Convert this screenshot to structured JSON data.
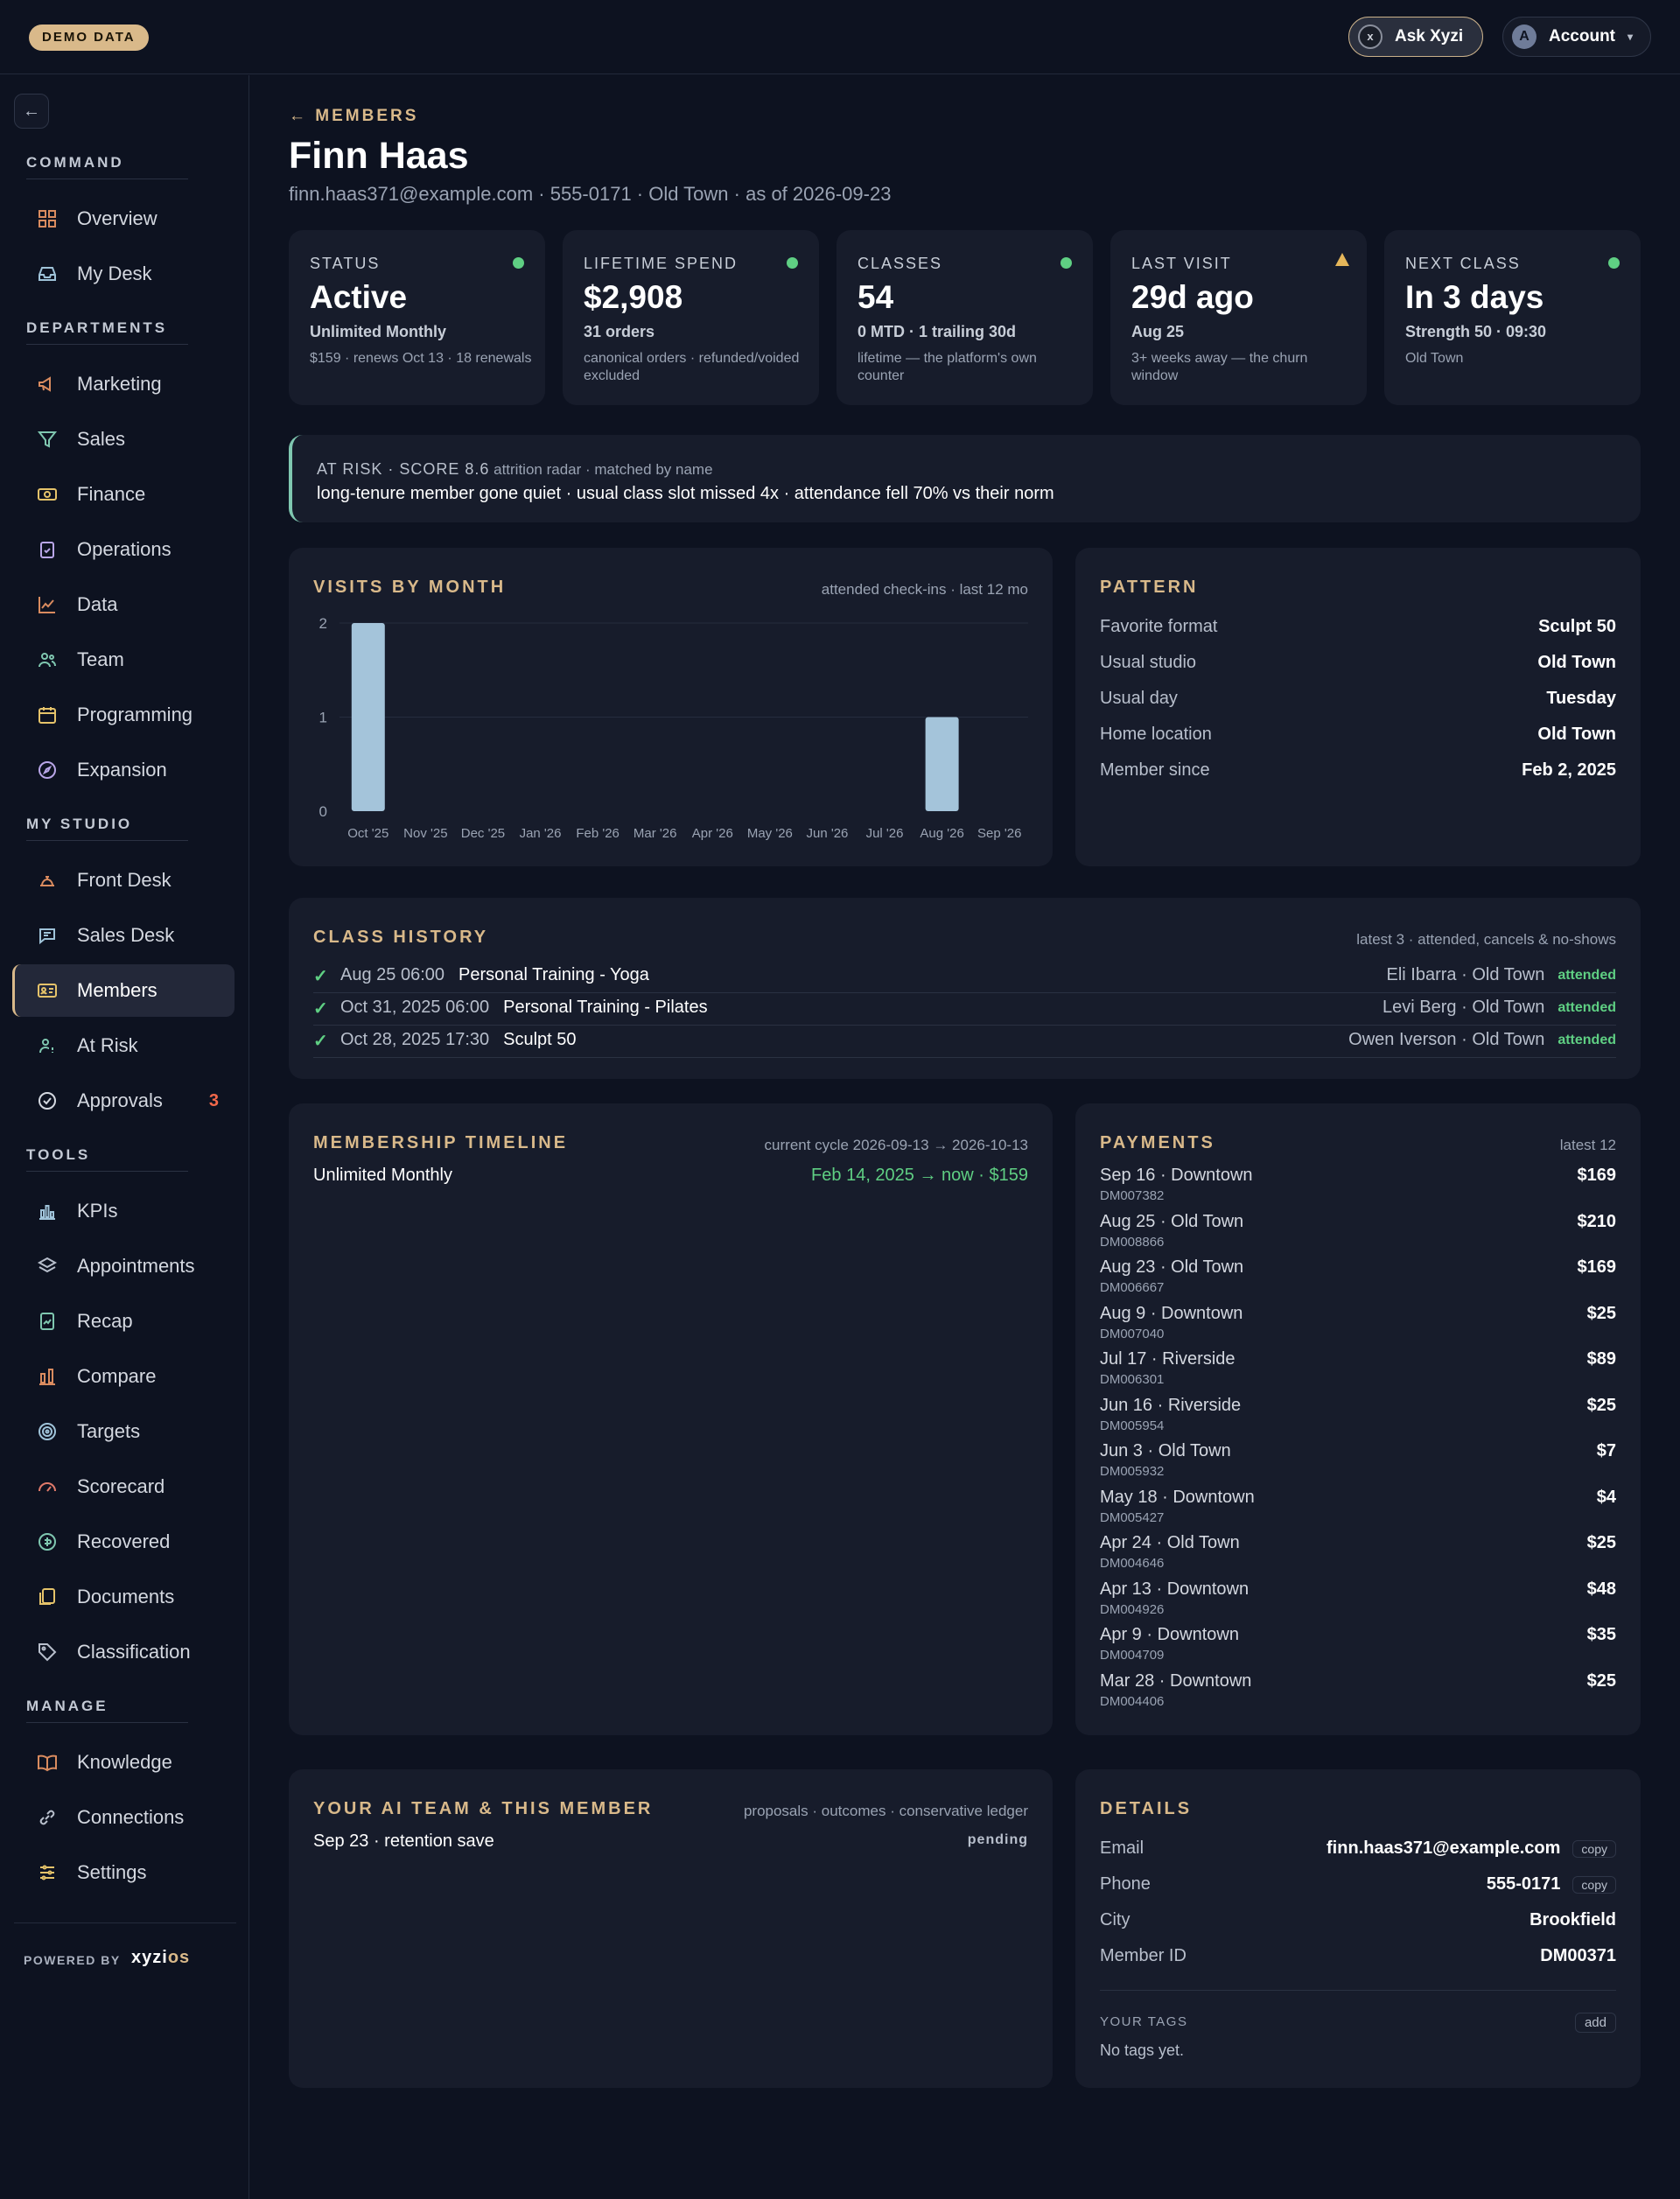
{
  "topbar": {
    "demo_badge": "DEMO DATA",
    "ask_label": "Ask Xyzi",
    "ask_icon_letter": "x",
    "account_initial": "A",
    "account_label": "Account",
    "account_caret": "▾"
  },
  "sidebar": {
    "back_icon": "←",
    "sections": {
      "command": "COMMAND",
      "departments": "DEPARTMENTS",
      "my_studio": "MY STUDIO",
      "tools": "TOOLS",
      "manage": "MANAGE"
    },
    "items": {
      "overview": "Overview",
      "my_desk": "My Desk",
      "marketing": "Marketing",
      "sales": "Sales",
      "finance": "Finance",
      "operations": "Operations",
      "data": "Data",
      "team": "Team",
      "programming": "Programming",
      "expansion": "Expansion",
      "front_desk": "Front Desk",
      "sales_desk": "Sales Desk",
      "members": "Members",
      "at_risk": "At Risk",
      "approvals": "Approvals",
      "approvals_badge": "3",
      "kpis": "KPIs",
      "appointments": "Appointments",
      "recap": "Recap",
      "compare": "Compare",
      "targets": "Targets",
      "scorecard": "Scorecard",
      "recovered": "Recovered",
      "documents": "Documents",
      "classification": "Classification",
      "knowledge": "Knowledge",
      "connections": "Connections",
      "settings": "Settings"
    },
    "powered_by": "POWERED BY",
    "brand_a": "xyzi",
    "brand_b": "os"
  },
  "header": {
    "breadcrumb": "← MEMBERS",
    "name": "Finn Haas",
    "subline": "finn.haas371@example.com · 555-0171 · Old Town · as of 2026-09-23"
  },
  "stats": [
    {
      "label": "STATUS",
      "value": "Active",
      "sub1": "Unlimited Monthly",
      "sub2": "$159 · renews Oct 13 · 18 renewals",
      "indicator": "ok"
    },
    {
      "label": "LIFETIME SPEND",
      "value": "$2,908",
      "sub1": "31 orders",
      "sub2": "canonical orders · refunded/voided excluded",
      "indicator": "ok"
    },
    {
      "label": "CLASSES",
      "value": "54",
      "sub1": "0 MTD · 1 trailing 30d",
      "sub2": "lifetime — the platform's own counter",
      "indicator": "ok"
    },
    {
      "label": "LAST VISIT",
      "value": "29d ago",
      "sub1": "Aug 25",
      "sub2": "3+ weeks away — the churn window",
      "indicator": "warn"
    },
    {
      "label": "NEXT CLASS",
      "value": "In 3 days",
      "sub1": "Strength 50 · 09:30",
      "sub2": "Old Town",
      "indicator": "ok"
    }
  ],
  "risk": {
    "head": "AT RISK · SCORE 8.6",
    "tail": "attrition radar · matched by name",
    "text": "long-tenure member gone quiet · usual class slot missed 4x · attendance fell 70% vs their norm"
  },
  "visits": {
    "title": "VISITS BY MONTH",
    "note": "attended check-ins · last 12 mo"
  },
  "chart_data": {
    "type": "bar",
    "categories": [
      "Oct '25",
      "Nov '25",
      "Dec '25",
      "Jan '26",
      "Feb '26",
      "Mar '26",
      "Apr '26",
      "May '26",
      "Jun '26",
      "Jul '26",
      "Aug '26",
      "Sep '26"
    ],
    "values": [
      2,
      0,
      0,
      0,
      0,
      0,
      0,
      0,
      0,
      0,
      1,
      0
    ],
    "yticks": [
      "0",
      "1",
      "2"
    ],
    "ylim": [
      0,
      2
    ],
    "grid": true,
    "bar_color": "#a4c4da"
  },
  "pattern": {
    "title": "PATTERN",
    "rows": [
      {
        "k": "Favorite format",
        "v": "Sculpt 50"
      },
      {
        "k": "Usual studio",
        "v": "Old Town"
      },
      {
        "k": "Usual day",
        "v": "Tuesday"
      },
      {
        "k": "Home location",
        "v": "Old Town"
      },
      {
        "k": "Member since",
        "v": "Feb 2, 2025"
      }
    ]
  },
  "history": {
    "title": "CLASS HISTORY",
    "note": "latest 3 · attended, cancels & no-shows",
    "rows": [
      {
        "check": "✓",
        "date": "Aug 25 06:00",
        "cls": "Personal Training - Yoga",
        "who": "Eli Ibarra · Old Town",
        "status": "attended"
      },
      {
        "check": "✓",
        "date": "Oct 31, 2025 06:00",
        "cls": "Personal Training - Pilates",
        "who": "Levi Berg · Old Town",
        "status": "attended"
      },
      {
        "check": "✓",
        "date": "Oct 28, 2025 17:30",
        "cls": "Sculpt 50",
        "who": "Owen Iverson · Old Town",
        "status": "attended"
      }
    ]
  },
  "timeline": {
    "title": "MEMBERSHIP TIMELINE",
    "note": "current cycle 2026-09-13 → 2026-10-13",
    "plan": "Unlimited Monthly",
    "range": "Feb 14, 2025 → now · $159"
  },
  "payments": {
    "title": "PAYMENTS",
    "note": "latest 12",
    "rows": [
      {
        "label": "Sep 16 · Downtown",
        "id": "DM007382",
        "amount": "$169"
      },
      {
        "label": "Aug 25 · Old Town",
        "id": "DM008866",
        "amount": "$210"
      },
      {
        "label": "Aug 23 · Old Town",
        "id": "DM006667",
        "amount": "$169"
      },
      {
        "label": "Aug 9 · Downtown",
        "id": "DM007040",
        "amount": "$25"
      },
      {
        "label": "Jul 17 · Riverside",
        "id": "DM006301",
        "amount": "$89"
      },
      {
        "label": "Jun 16 · Riverside",
        "id": "DM005954",
        "amount": "$25"
      },
      {
        "label": "Jun 3 · Old Town",
        "id": "DM005932",
        "amount": "$7"
      },
      {
        "label": "May 18 · Downtown",
        "id": "DM005427",
        "amount": "$4"
      },
      {
        "label": "Apr 24 · Old Town",
        "id": "DM004646",
        "amount": "$25"
      },
      {
        "label": "Apr 13 · Downtown",
        "id": "DM004926",
        "amount": "$48"
      },
      {
        "label": "Apr 9 · Downtown",
        "id": "DM004709",
        "amount": "$35"
      },
      {
        "label": "Mar 28 · Downtown",
        "id": "DM004406",
        "amount": "$25"
      }
    ]
  },
  "ai_team": {
    "title": "YOUR AI TEAM & THIS MEMBER",
    "note": "proposals · outcomes · conservative ledger",
    "item": "Sep 23 · retention save",
    "item_status": "pending"
  },
  "details": {
    "title": "DETAILS",
    "copy_label": "copy",
    "rows": [
      {
        "k": "Email",
        "v": "finn.haas371@example.com"
      },
      {
        "k": "Phone",
        "v": "555-0171"
      },
      {
        "k": "City",
        "v": "Brookfield"
      },
      {
        "k": "Member ID",
        "v": "DM00371"
      }
    ],
    "tags_label": "YOUR TAGS",
    "add_label": "add",
    "no_tags": "No tags yet."
  }
}
